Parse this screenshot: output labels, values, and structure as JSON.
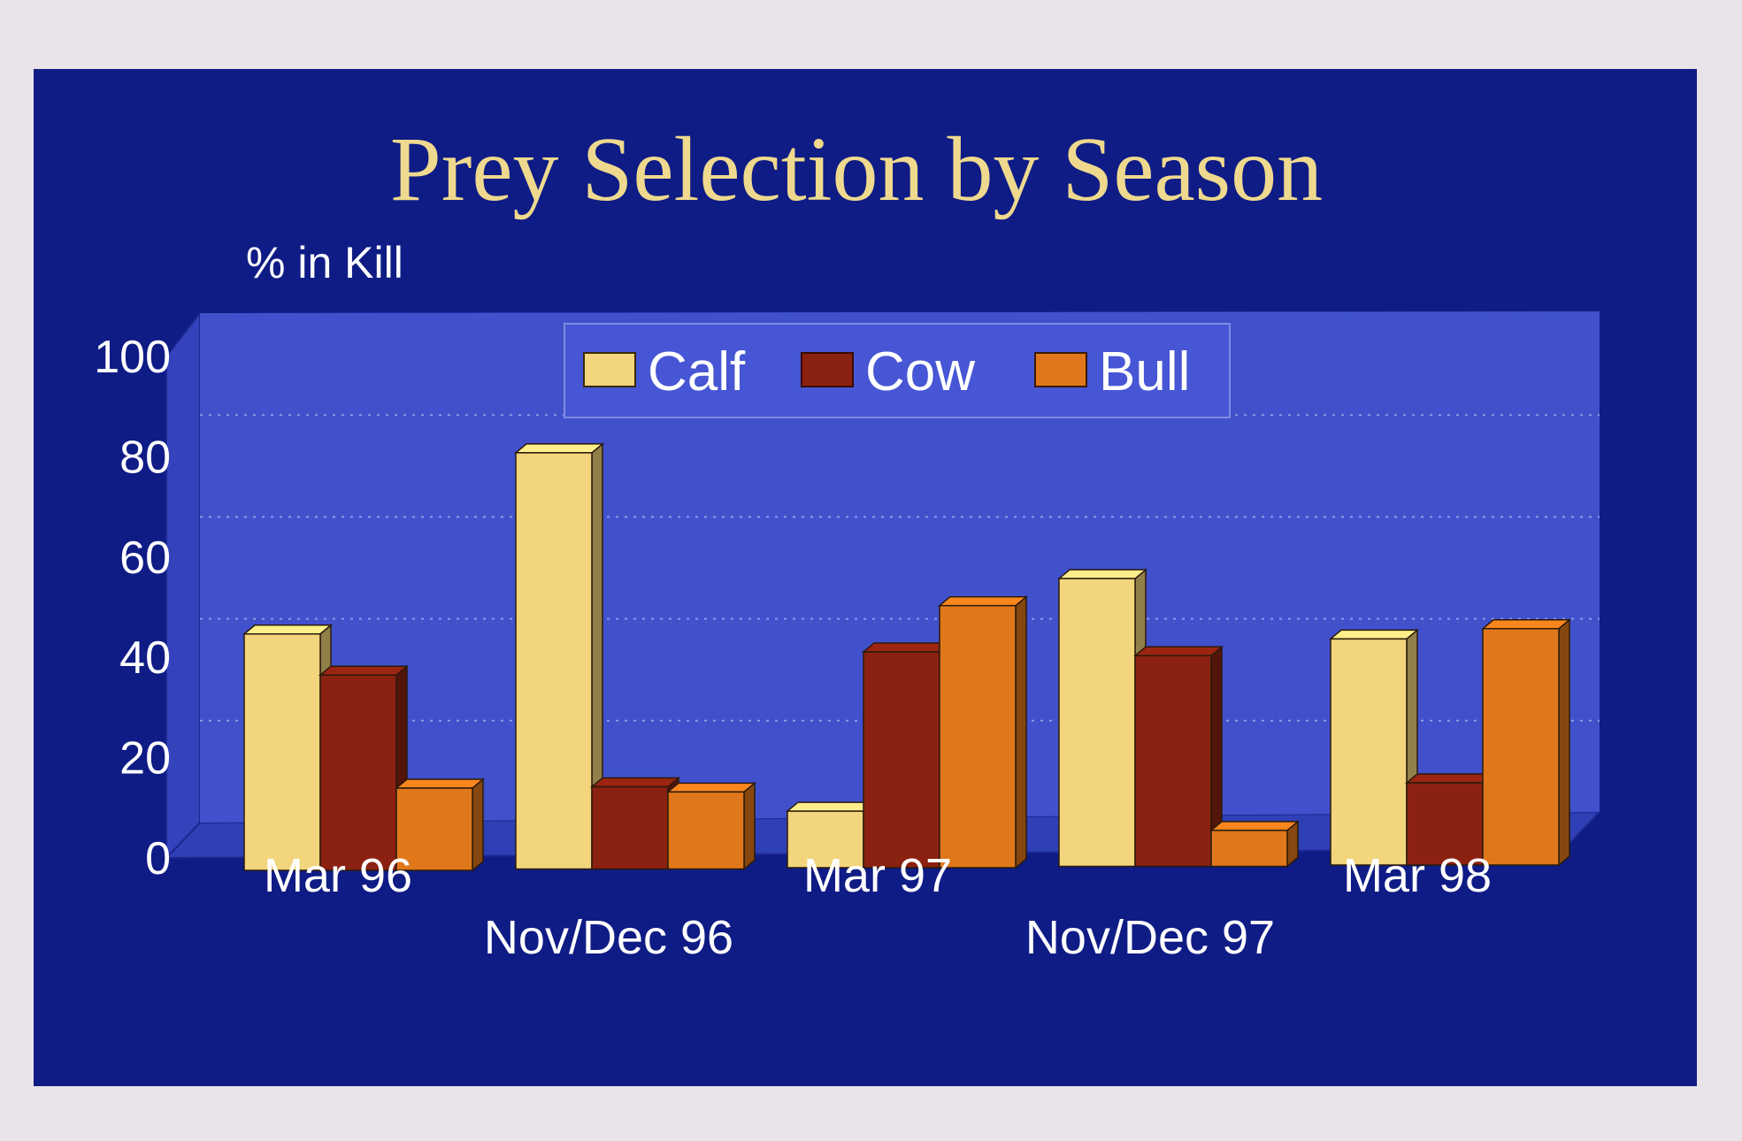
{
  "chart_data": {
    "type": "bar",
    "title": "Prey Selection by Season",
    "xlabel": "",
    "ylabel": "% in Kill",
    "categories": [
      "Mar 96",
      "Nov/Dec 96",
      "Mar 97",
      "Nov/Dec 97",
      "Mar 98"
    ],
    "series": [
      {
        "name": "Calf",
        "values": [
          46,
          81,
          11,
          56,
          44
        ]
      },
      {
        "name": "Cow",
        "values": [
          38,
          16,
          42,
          41,
          16
        ]
      },
      {
        "name": "Bull",
        "values": [
          16,
          15,
          51,
          7,
          46
        ]
      }
    ],
    "ylim": [
      0,
      100
    ],
    "yticks": [
      0,
      20,
      40,
      60,
      80,
      100
    ],
    "grid": true,
    "legend": "top-center",
    "colors": {
      "Calf": "#f2d57c",
      "Cow": "#8b2110",
      "Bull": "#e0781b",
      "background": "#0f1c85",
      "plot_wall": "#3f4ecb",
      "title": "#eed98e",
      "text": "#ffffff"
    }
  }
}
